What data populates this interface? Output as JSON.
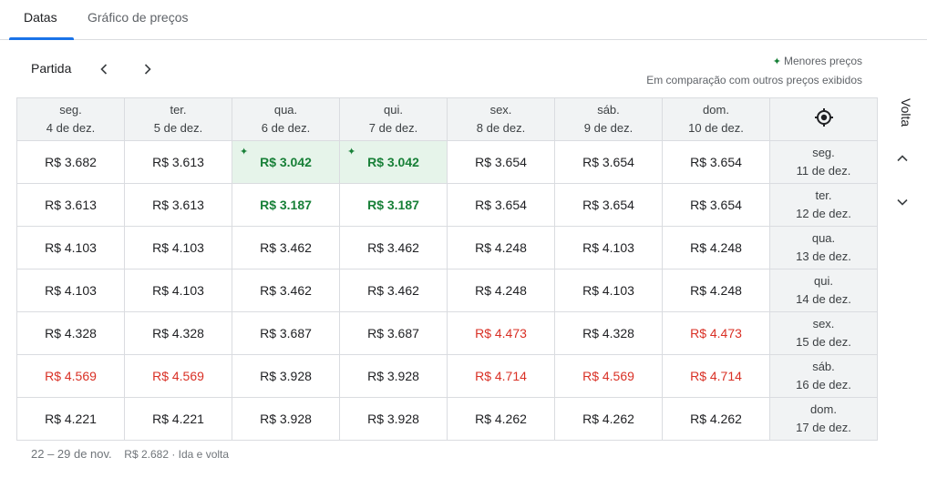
{
  "tabs": [
    {
      "label": "Datas",
      "active": true
    },
    {
      "label": "Gráfico de preços",
      "active": false
    }
  ],
  "departure_label": "Partida",
  "legend": {
    "title": "Menores preços",
    "subtitle": "Em comparação com outros preços exibidos",
    "icon": "sparkle-icon",
    "color": "#188038"
  },
  "return_label": "Volta",
  "columns": [
    {
      "day": "seg.",
      "date": "4 de dez."
    },
    {
      "day": "ter.",
      "date": "5 de dez."
    },
    {
      "day": "qua.",
      "date": "6 de dez."
    },
    {
      "day": "qui.",
      "date": "7 de dez."
    },
    {
      "day": "sex.",
      "date": "8 de dez."
    },
    {
      "day": "sáb.",
      "date": "9 de dez."
    },
    {
      "day": "dom.",
      "date": "10 de dez."
    }
  ],
  "rows": [
    {
      "day": "seg.",
      "date": "11 de dez.",
      "prices": [
        {
          "v": "R$ 3.682",
          "s": ""
        },
        {
          "v": "R$ 3.613",
          "s": ""
        },
        {
          "v": "R$ 3.042",
          "s": "best"
        },
        {
          "v": "R$ 3.042",
          "s": "best"
        },
        {
          "v": "R$ 3.654",
          "s": ""
        },
        {
          "v": "R$ 3.654",
          "s": ""
        },
        {
          "v": "R$ 3.654",
          "s": ""
        }
      ]
    },
    {
      "day": "ter.",
      "date": "12 de dez.",
      "prices": [
        {
          "v": "R$ 3.613",
          "s": ""
        },
        {
          "v": "R$ 3.613",
          "s": ""
        },
        {
          "v": "R$ 3.187",
          "s": "low"
        },
        {
          "v": "R$ 3.187",
          "s": "low"
        },
        {
          "v": "R$ 3.654",
          "s": ""
        },
        {
          "v": "R$ 3.654",
          "s": ""
        },
        {
          "v": "R$ 3.654",
          "s": ""
        }
      ]
    },
    {
      "day": "qua.",
      "date": "13 de dez.",
      "prices": [
        {
          "v": "R$ 4.103",
          "s": ""
        },
        {
          "v": "R$ 4.103",
          "s": ""
        },
        {
          "v": "R$ 3.462",
          "s": ""
        },
        {
          "v": "R$ 3.462",
          "s": ""
        },
        {
          "v": "R$ 4.248",
          "s": ""
        },
        {
          "v": "R$ 4.103",
          "s": ""
        },
        {
          "v": "R$ 4.248",
          "s": ""
        }
      ]
    },
    {
      "day": "qui.",
      "date": "14 de dez.",
      "prices": [
        {
          "v": "R$ 4.103",
          "s": ""
        },
        {
          "v": "R$ 4.103",
          "s": ""
        },
        {
          "v": "R$ 3.462",
          "s": ""
        },
        {
          "v": "R$ 3.462",
          "s": ""
        },
        {
          "v": "R$ 4.248",
          "s": ""
        },
        {
          "v": "R$ 4.103",
          "s": ""
        },
        {
          "v": "R$ 4.248",
          "s": ""
        }
      ]
    },
    {
      "day": "sex.",
      "date": "15 de dez.",
      "prices": [
        {
          "v": "R$ 4.328",
          "s": ""
        },
        {
          "v": "R$ 4.328",
          "s": ""
        },
        {
          "v": "R$ 3.687",
          "s": ""
        },
        {
          "v": "R$ 3.687",
          "s": ""
        },
        {
          "v": "R$ 4.473",
          "s": "high"
        },
        {
          "v": "R$ 4.328",
          "s": ""
        },
        {
          "v": "R$ 4.473",
          "s": "high"
        }
      ]
    },
    {
      "day": "sáb.",
      "date": "16 de dez.",
      "prices": [
        {
          "v": "R$ 4.569",
          "s": "high"
        },
        {
          "v": "R$ 4.569",
          "s": "high"
        },
        {
          "v": "R$ 3.928",
          "s": ""
        },
        {
          "v": "R$ 3.928",
          "s": ""
        },
        {
          "v": "R$ 4.714",
          "s": "high"
        },
        {
          "v": "R$ 4.569",
          "s": "high"
        },
        {
          "v": "R$ 4.714",
          "s": "high"
        }
      ]
    },
    {
      "day": "dom.",
      "date": "17 de dez.",
      "prices": [
        {
          "v": "R$ 4.221",
          "s": ""
        },
        {
          "v": "R$ 4.221",
          "s": ""
        },
        {
          "v": "R$ 3.928",
          "s": ""
        },
        {
          "v": "R$ 3.928",
          "s": ""
        },
        {
          "v": "R$ 4.262",
          "s": ""
        },
        {
          "v": "R$ 4.262",
          "s": ""
        },
        {
          "v": "R$ 4.262",
          "s": ""
        }
      ]
    }
  ],
  "footer": {
    "range": "22 – 29 de nov.",
    "price": "R$ 2.682 · Ida e volta"
  },
  "colors": {
    "low": "#188038",
    "high": "#d93025",
    "best_bg": "#e6f4ea",
    "accent": "#1a73e8"
  }
}
